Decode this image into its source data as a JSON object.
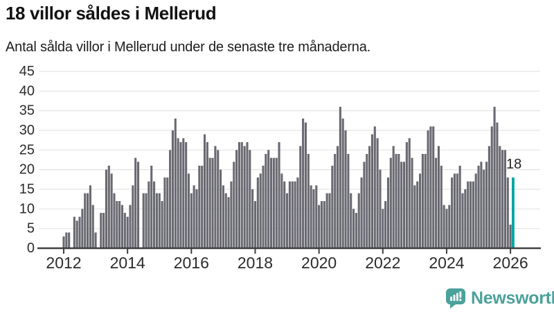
{
  "header": {
    "title": "18 villor såldes i Mellerud",
    "subtitle": "Antal sålda villor i Mellerud under de senaste tre månaderna."
  },
  "annotation": {
    "latest_value_label": "18"
  },
  "branding": {
    "name": "Newsworthy",
    "color": "#4ba19b"
  },
  "chart_data": {
    "type": "bar",
    "title": "18 villor såldes i Mellerud",
    "subtitle": "Antal sålda villor i Mellerud under de senaste tre månaderna.",
    "x_start": "2012-01",
    "x_interval": "monthly",
    "x_tick_labels": [
      "2012",
      "2014",
      "2016",
      "2018",
      "2020",
      "2022",
      "2024",
      "2026"
    ],
    "y_ticks": [
      0,
      5,
      10,
      15,
      20,
      25,
      30,
      35,
      40,
      45
    ],
    "ylim": [
      0,
      45
    ],
    "grid": true,
    "legend": "none",
    "values": [
      3,
      4,
      4,
      0,
      8,
      7,
      8,
      10,
      14,
      14,
      16,
      11,
      4,
      0,
      9,
      9,
      20,
      21,
      19,
      14,
      12,
      12,
      11,
      9,
      8,
      11,
      16,
      23,
      22,
      0,
      14,
      14,
      17,
      21,
      17,
      14,
      14,
      12,
      18,
      18,
      25,
      30,
      33,
      28,
      27,
      28,
      27,
      19,
      14,
      16,
      15,
      21,
      21,
      29,
      27,
      23,
      23,
      26,
      25,
      20,
      16,
      14,
      13,
      17,
      22,
      25,
      27,
      27,
      26,
      27,
      25,
      15,
      12,
      18,
      19,
      21,
      24,
      25,
      23,
      23,
      23,
      27,
      19,
      17,
      14,
      17,
      17,
      17,
      18,
      26,
      33,
      32,
      24,
      16,
      15,
      16,
      11,
      12,
      12,
      14,
      14,
      21,
      24,
      26,
      36,
      33,
      30,
      24,
      14,
      10,
      9,
      14,
      18,
      22,
      24,
      26,
      29,
      31,
      28,
      20,
      10,
      12,
      18,
      23,
      26,
      24,
      24,
      22,
      22,
      27,
      28,
      23,
      16,
      17,
      19,
      24,
      24,
      30,
      31,
      31,
      23,
      26,
      21,
      11,
      10,
      11,
      18,
      19,
      19,
      21,
      14,
      15,
      17,
      17,
      17,
      19,
      21,
      22,
      20,
      22,
      26,
      31,
      36,
      32,
      26,
      25,
      25,
      18,
      6,
      18
    ],
    "highlight": {
      "index": 169,
      "value": 18,
      "label": "18"
    },
    "colors": {
      "bar": "#696971",
      "highlight": "#00a3a3",
      "grid": "#e3e3e3",
      "axis": "#3f3f3f",
      "text": "#2b2b2b",
      "annotation": "#222222"
    }
  }
}
